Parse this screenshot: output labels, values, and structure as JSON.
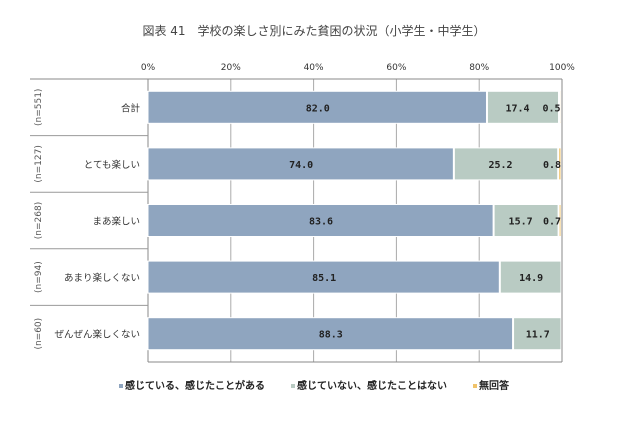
{
  "chart_data": {
    "type": "bar",
    "orientation": "horizontal",
    "stacked": true,
    "title": "図表 41　学校の楽しさ別にみた貧困の状況（小学生・中学生）",
    "xlim": [
      0,
      100
    ],
    "xticks": [
      "0%",
      "20%",
      "40%",
      "60%",
      "80%",
      "100%"
    ],
    "categories": [
      "合計",
      "とても楽しい",
      "まあ楽しい",
      "あまり楽しくない",
      "ぜんぜん楽しくない"
    ],
    "n_labels": [
      "(n=551)",
      "(n=127)",
      "(n=268)",
      "(n=94)",
      "(n=60)"
    ],
    "series": [
      {
        "name": "感じている、感じたことがある",
        "color": "#8fa5bf",
        "values": [
          82.0,
          74.0,
          83.6,
          85.1,
          88.3
        ]
      },
      {
        "name": "感じていない、感じたことはない",
        "color": "#b9cbc3",
        "values": [
          17.4,
          25.2,
          15.7,
          14.9,
          11.7
        ]
      },
      {
        "name": "無回答",
        "color": "#f0c36a",
        "values": [
          0.5,
          0.8,
          0.7,
          null,
          null
        ]
      }
    ],
    "legend_position": "bottom",
    "grid": true
  }
}
